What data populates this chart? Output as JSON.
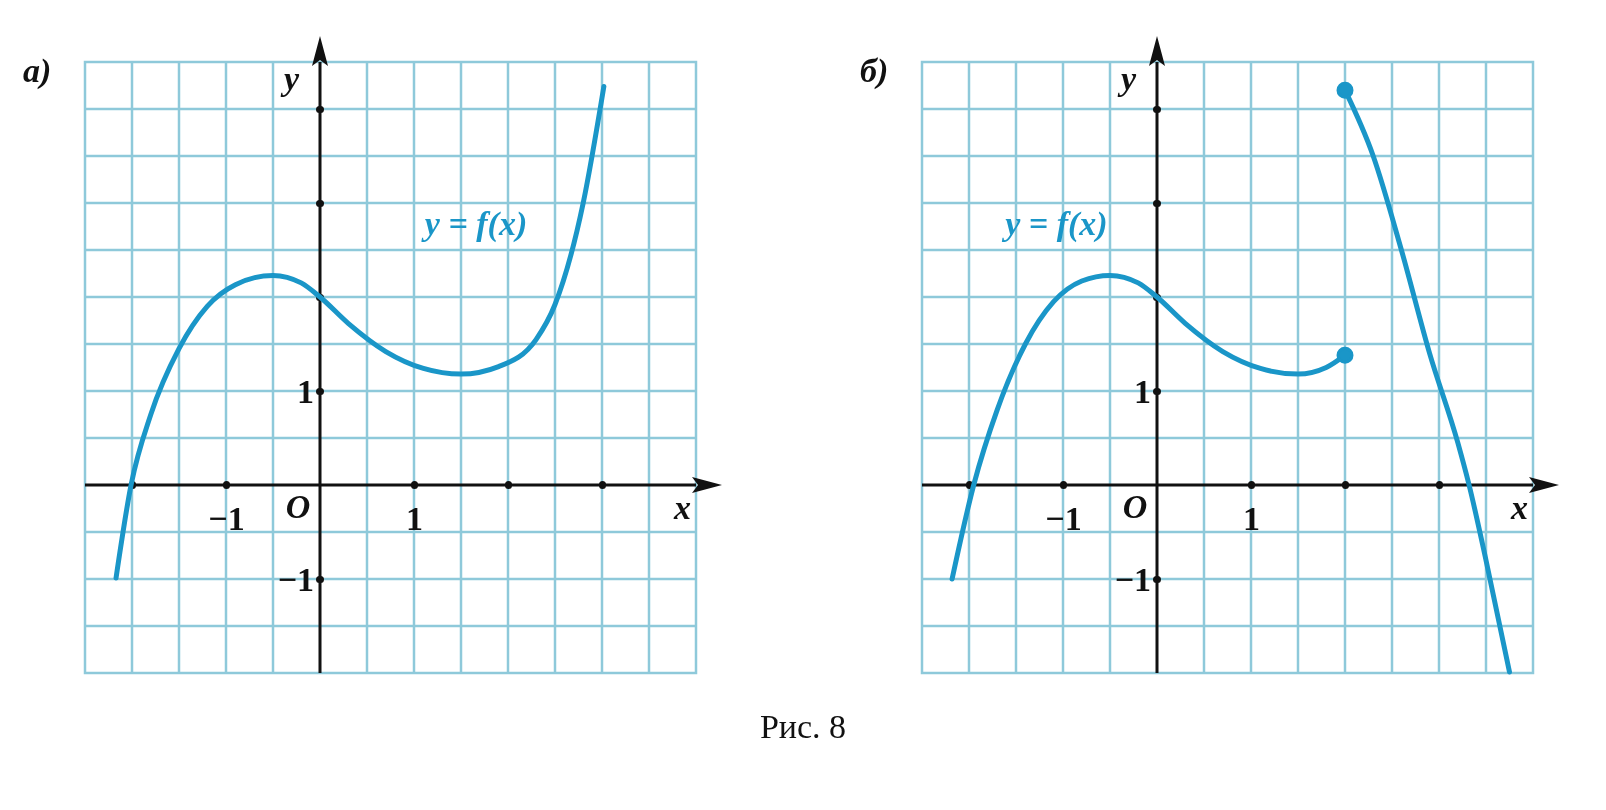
{
  "chart_data": [
    {
      "type": "line",
      "title": "а)",
      "xlabel": "x",
      "ylabel": "y",
      "xlim": [
        -2.5,
        4
      ],
      "ylim": [
        -2,
        4.5
      ],
      "xticks": [
        {
          "value": -2,
          "label": null
        },
        {
          "value": -1.5,
          "label": null
        },
        {
          "value": -1,
          "label": "−1"
        },
        {
          "value": -0.5,
          "label": null
        },
        {
          "value": 0.5,
          "label": null
        },
        {
          "value": 1,
          "label": "1"
        },
        {
          "value": 1.5,
          "label": null
        },
        {
          "value": 2,
          "label": null
        },
        {
          "value": 2.5,
          "label": null
        },
        {
          "value": 3,
          "label": null
        },
        {
          "value": 3.5,
          "label": null
        }
      ],
      "yticks": [
        {
          "value": -1.5,
          "label": null
        },
        {
          "value": -1,
          "label": "−1"
        },
        {
          "value": -0.5,
          "label": null
        },
        {
          "value": 0.5,
          "label": null
        },
        {
          "value": 1,
          "label": "1"
        },
        {
          "value": 1.5,
          "label": null
        },
        {
          "value": 2,
          "label": null
        },
        {
          "value": 2.5,
          "label": null
        },
        {
          "value": 3,
          "label": null
        },
        {
          "value": 3.5,
          "label": null
        },
        {
          "value": 4,
          "label": null
        }
      ],
      "grid": true,
      "series": [
        {
          "color": "#1a96c8",
          "x": [
            -2.17,
            -2.01,
            -1.8,
            -1.5,
            -1.2,
            -0.9,
            -0.5,
            -0.2,
            0,
            0.3,
            0.7,
            1.1,
            1.5,
            1.9,
            2.3,
            2.5,
            2.8,
            3.02
          ],
          "values": [
            -0.99,
            0,
            0.75,
            1.45,
            1.9,
            2.13,
            2.23,
            2.15,
            2.0,
            1.72,
            1.42,
            1.24,
            1.18,
            1.26,
            1.55,
            1.92,
            3.0,
            4.24
          ]
        }
      ],
      "annotations": [
        "y = f(x)",
        "O",
        "Рис. 8"
      ]
    },
    {
      "type": "line",
      "title": "б)",
      "xlabel": "x",
      "ylabel": "y",
      "xlim": [
        -2.5,
        4
      ],
      "ylim": [
        -2,
        4.5
      ],
      "xticks": [
        {
          "value": -2,
          "label": null
        },
        {
          "value": -1.5,
          "label": null
        },
        {
          "value": -1,
          "label": "−1"
        },
        {
          "value": -0.5,
          "label": null
        },
        {
          "value": 0.5,
          "label": null
        },
        {
          "value": 1,
          "label": "1"
        },
        {
          "value": 1.5,
          "label": null
        },
        {
          "value": 2,
          "label": null
        },
        {
          "value": 2.5,
          "label": null
        },
        {
          "value": 3,
          "label": null
        },
        {
          "value": 3.5,
          "label": null
        }
      ],
      "yticks": [
        {
          "value": -1.5,
          "label": null
        },
        {
          "value": -1,
          "label": "−1"
        },
        {
          "value": -0.5,
          "label": null
        },
        {
          "value": 0.5,
          "label": null
        },
        {
          "value": 1,
          "label": "1"
        },
        {
          "value": 1.5,
          "label": null
        },
        {
          "value": 2,
          "label": null
        },
        {
          "value": 2.5,
          "label": null
        },
        {
          "value": 3,
          "label": null
        },
        {
          "value": 3.5,
          "label": null
        },
        {
          "value": 4,
          "label": null
        }
      ],
      "grid": true,
      "series": [
        {
          "color": "#1a96c8",
          "x": [
            -2.18,
            -1.95,
            -1.7,
            -1.4,
            -1.1,
            -0.8,
            -0.5,
            -0.2,
            0,
            0.3,
            0.7,
            1.1,
            1.5,
            1.8,
            2
          ],
          "values": [
            -1,
            0,
            0.8,
            1.5,
            1.95,
            2.17,
            2.23,
            2.15,
            2.0,
            1.72,
            1.42,
            1.24,
            1.18,
            1.25,
            1.38
          ]
        },
        {
          "color": "#1a96c8",
          "x": [
            2,
            2.3,
            2.6,
            2.9,
            3.2,
            3.32,
            3.5,
            3.75
          ],
          "values": [
            4.2,
            3.5,
            2.5,
            1.4,
            0.45,
            0,
            -0.8,
            -1.99
          ]
        },
        {
          "type": "scatter",
          "color": "#1a96c8",
          "marker": "circle",
          "x": [
            2
          ],
          "values": [
            1.38
          ]
        },
        {
          "type": "scatter",
          "color": "#1a96c8",
          "marker": "circle",
          "x": [
            2
          ],
          "values": [
            4.2
          ]
        }
      ],
      "annotations": [
        "y = f(x)",
        "O"
      ]
    }
  ]
}
